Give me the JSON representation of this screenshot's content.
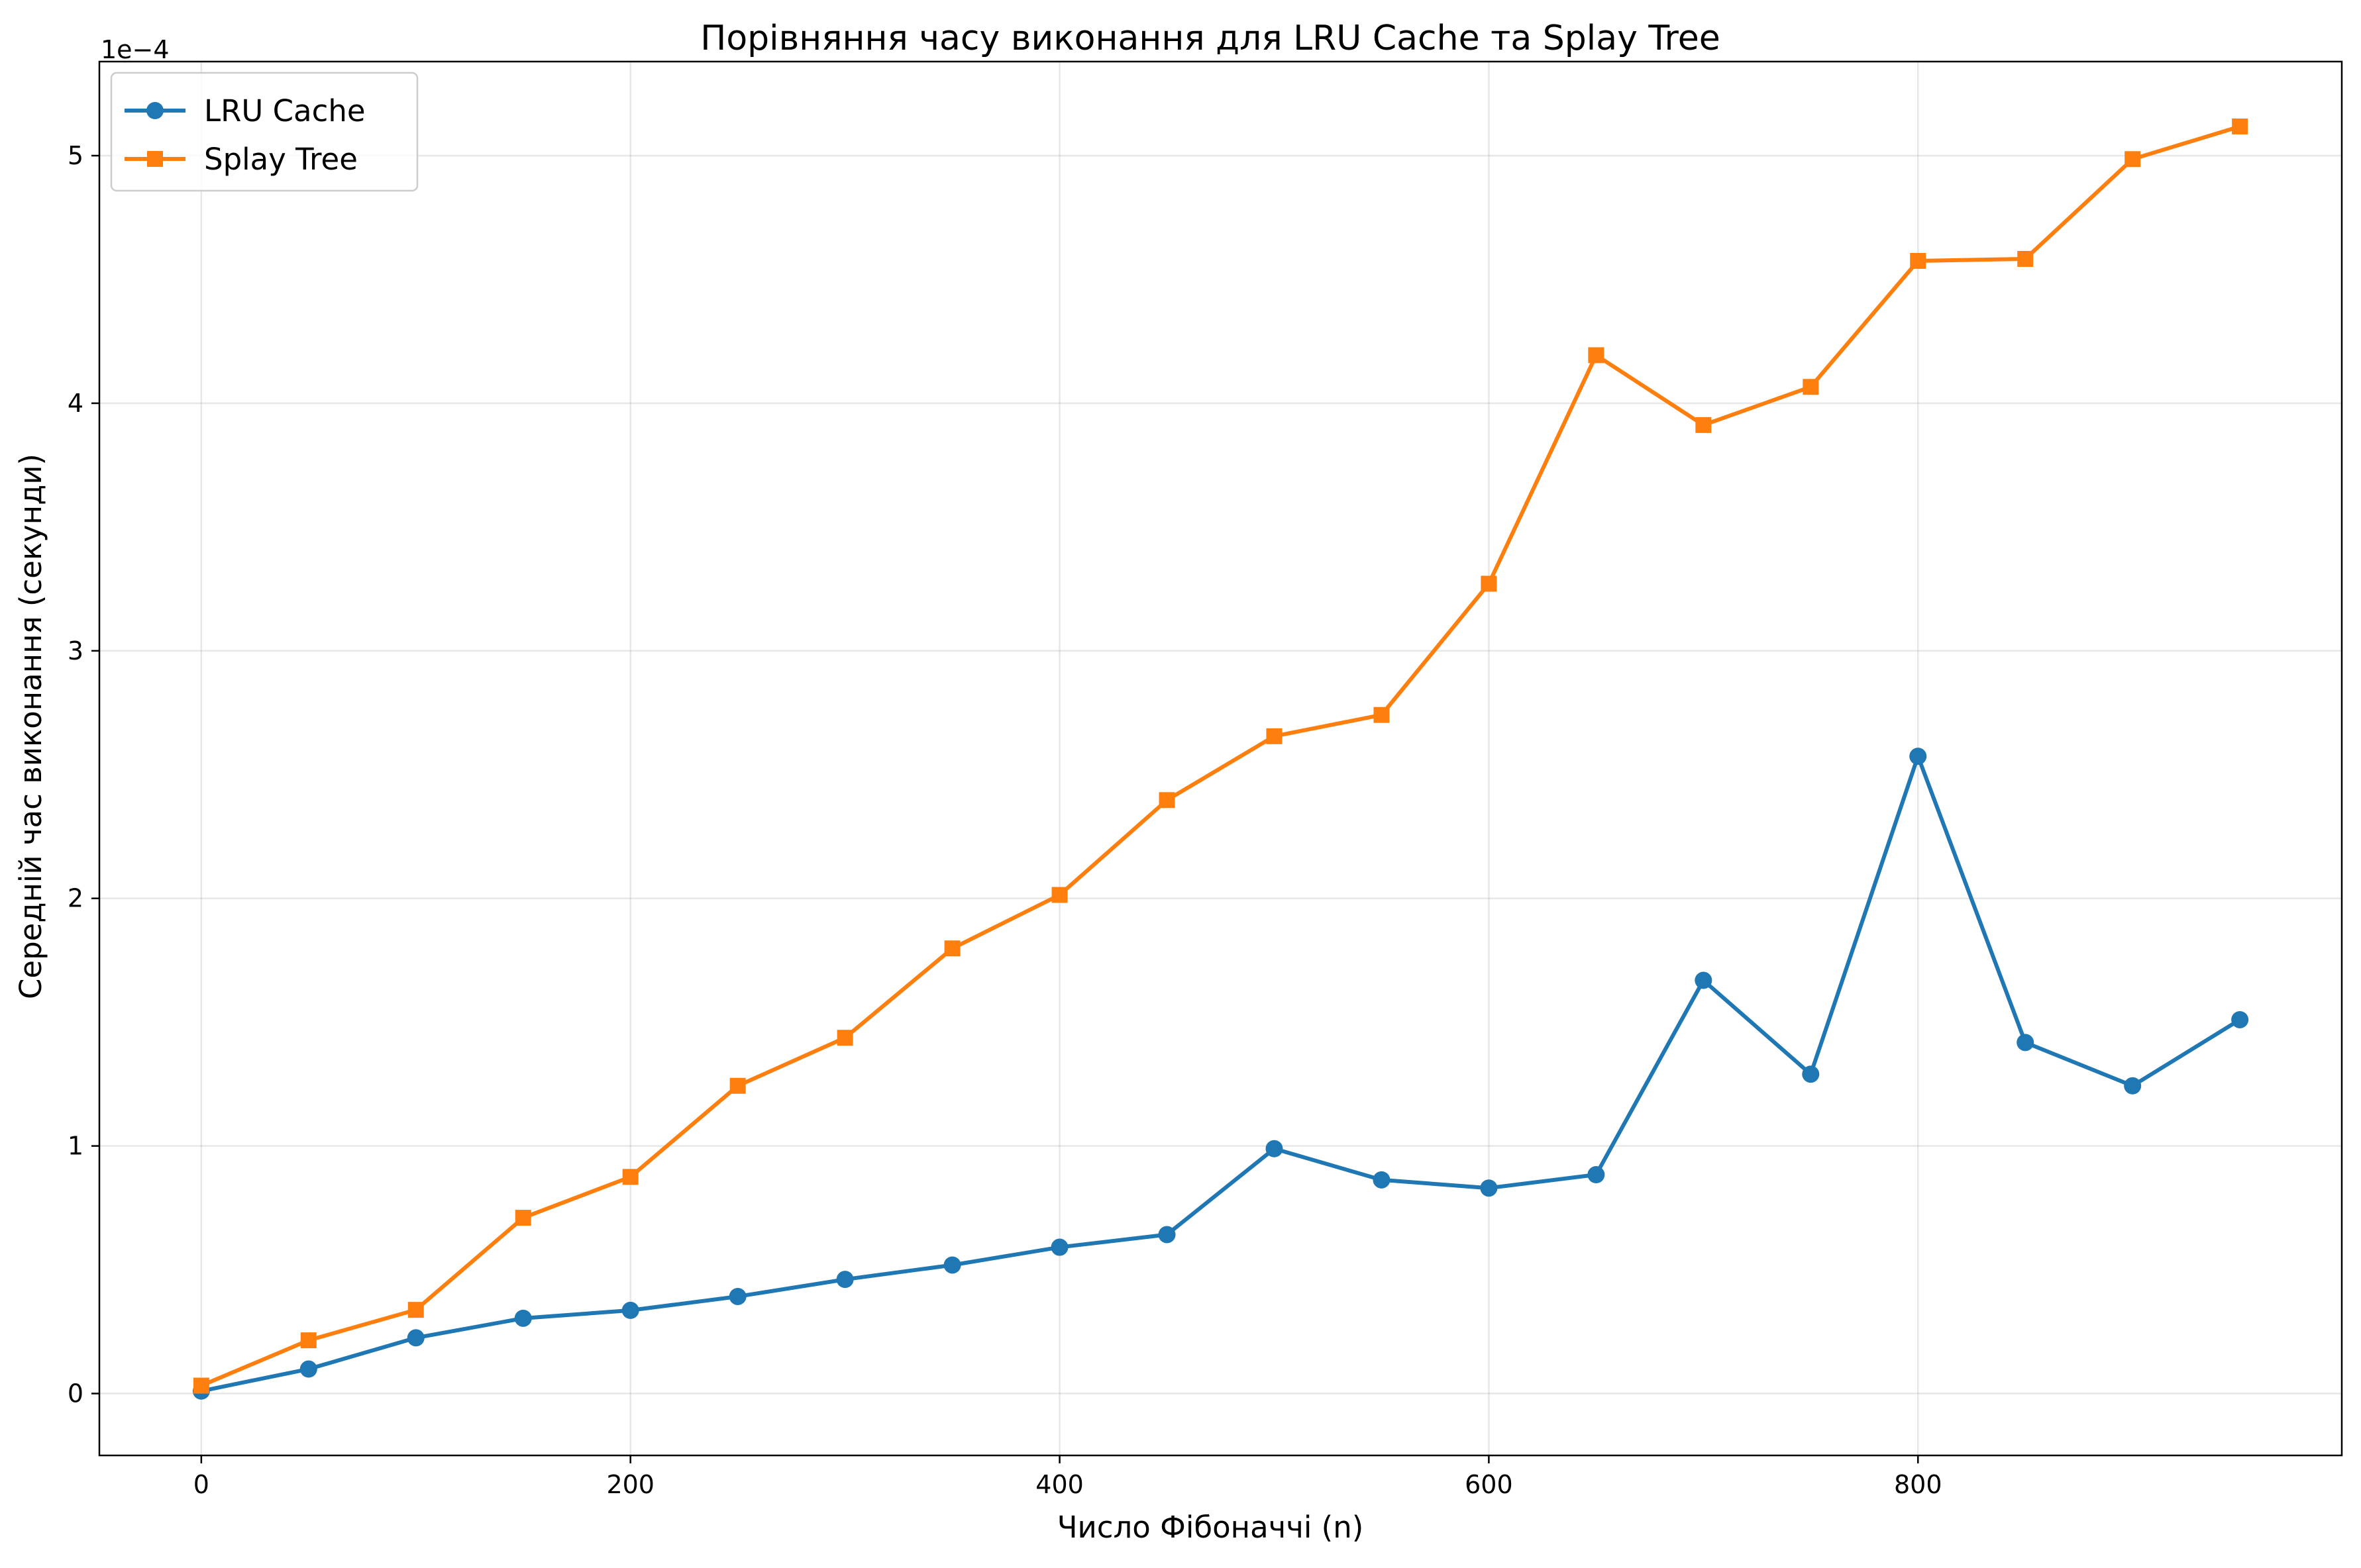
{
  "chart_data": {
    "type": "line",
    "title": "Порівняння часу виконання для LRU Cache та Splay Tree",
    "xlabel": "Число Фібоначчі (n)",
    "ylabel": "Середній час виконання (секунди)",
    "offset_text": "1e−4",
    "x": [
      0,
      50,
      100,
      150,
      200,
      250,
      300,
      350,
      400,
      450,
      500,
      550,
      600,
      650,
      700,
      750,
      800,
      850,
      900,
      950
    ],
    "xlim": [
      -47.5,
      997.5
    ],
    "ylim": [
      -2.5e-05,
      0.000538
    ],
    "x_ticks": [
      0,
      200,
      400,
      600,
      800
    ],
    "x_tick_labels": [
      "0",
      "200",
      "400",
      "600",
      "800"
    ],
    "y_ticks": [
      0,
      0.0001,
      0.0002,
      0.0003,
      0.0004,
      0.0005
    ],
    "y_tick_labels": [
      "0",
      "1",
      "2",
      "3",
      "4",
      "5"
    ],
    "grid": true,
    "legend_position": "upper-left",
    "series": [
      {
        "name": "LRU Cache",
        "color": "#1f77b4",
        "marker": "circle",
        "values": [
          1e-06,
          9.9e-06,
          2.25e-05,
          3.04e-05,
          3.36e-05,
          3.92e-05,
          4.61e-05,
          5.19e-05,
          5.91e-05,
          6.42e-05,
          9.89e-05,
          8.63e-05,
          8.3e-05,
          8.84e-05,
          0.0001669,
          0.000129,
          0.0002574,
          0.0001418,
          0.0001243,
          0.000151
        ]
      },
      {
        "name": "Splay Tree",
        "color": "#ff7f0e",
        "marker": "square",
        "values": [
          3.2e-06,
          2.15e-05,
          3.38e-05,
          7.1e-05,
          8.75e-05,
          0.0001243,
          0.0001437,
          0.0001798,
          0.0002014,
          0.0002397,
          0.0002655,
          0.0002741,
          0.0003271,
          0.0004194,
          0.0003912,
          0.0004066,
          0.0004575,
          0.0004583,
          0.0004986,
          0.0005118
        ]
      }
    ]
  }
}
